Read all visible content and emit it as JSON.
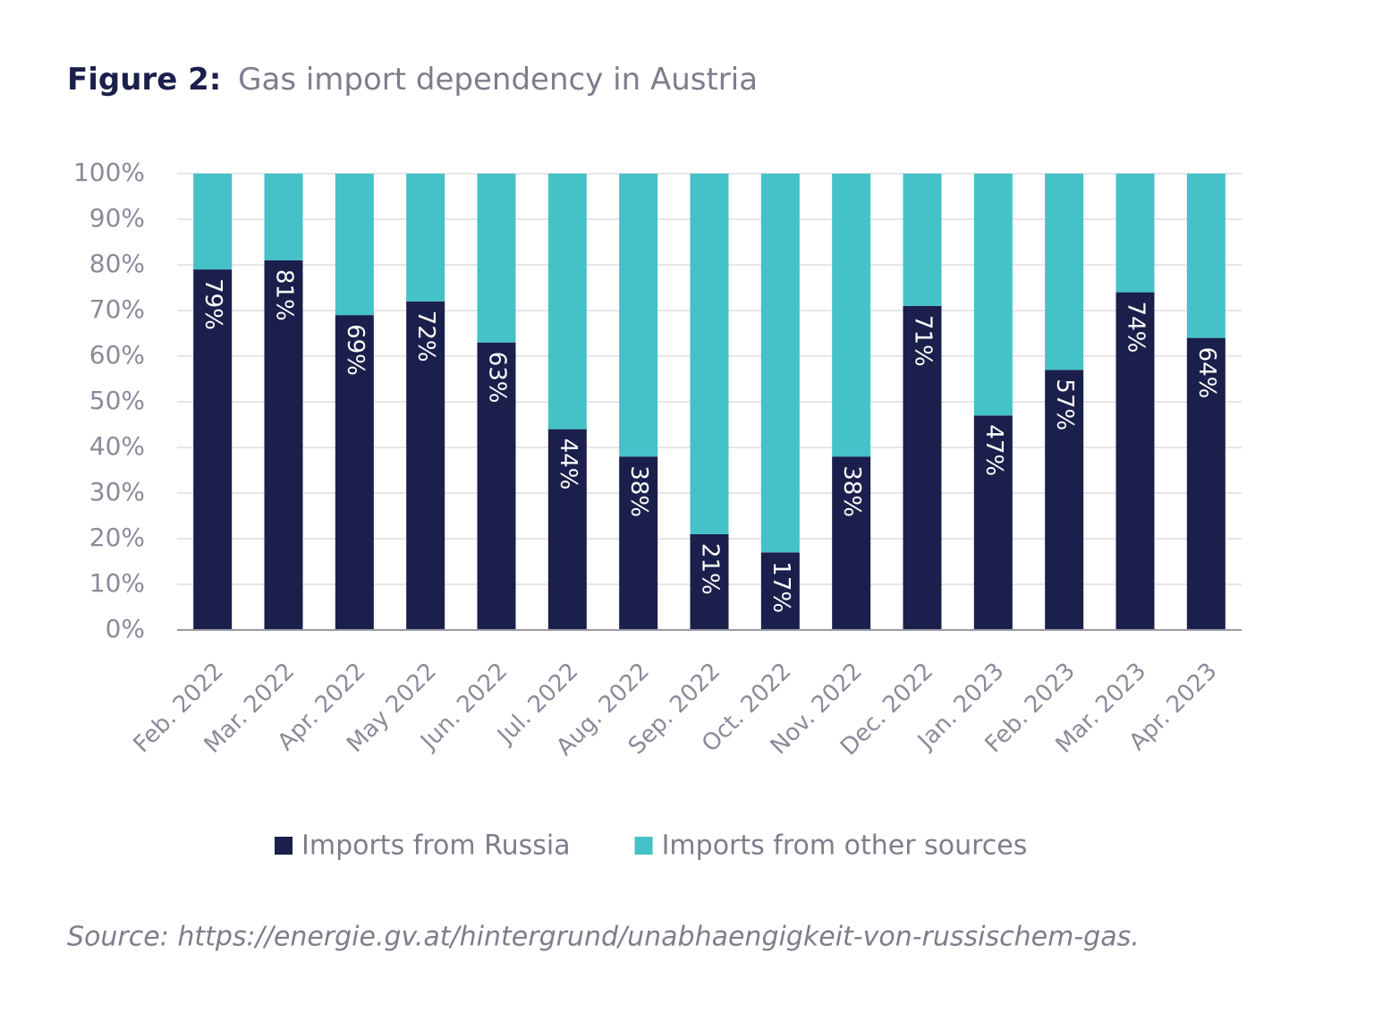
{
  "chart_data": {
    "type": "stacked_bar",
    "title_label": "Figure 2:",
    "title": "Gas import dependency in Austria",
    "source": "Source: https://energie.gv.at/hintergrund/unabhaengigkeit-von-russischem-gas.",
    "categories": [
      "Feb. 2022",
      "Mar. 2022",
      "Apr. 2022",
      "May 2022",
      "Jun. 2022",
      "Jul. 2022",
      "Aug. 2022",
      "Sep. 2022",
      "Oct. 2022",
      "Nov. 2022",
      "Dec. 2022",
      "Jan. 2023",
      "Feb. 2023",
      "Mar. 2023",
      "Apr. 2023"
    ],
    "series": [
      {
        "name": "Imports from Russia",
        "color": "#1b1f4b",
        "values": [
          79,
          81,
          69,
          72,
          63,
          44,
          38,
          21,
          17,
          38,
          71,
          47,
          57,
          74,
          64
        ],
        "value_labels": [
          "79%",
          "81%",
          "69%",
          "72%",
          "63%",
          "44%",
          "38%",
          "21%",
          "17%",
          "38%",
          "71%",
          "47%",
          "57%",
          "74%",
          "64%"
        ]
      },
      {
        "name": "Imports from other sources",
        "color": "#45c1c8",
        "values": [
          21,
          19,
          31,
          28,
          37,
          56,
          62,
          79,
          83,
          62,
          29,
          53,
          43,
          26,
          36
        ]
      }
    ],
    "ylim": [
      0,
      100
    ],
    "yticks": [
      {
        "value": 0,
        "label": "0%"
      },
      {
        "value": 10,
        "label": "10%"
      },
      {
        "value": 20,
        "label": "20%"
      },
      {
        "value": 30,
        "label": "30%"
      },
      {
        "value": 40,
        "label": "40%"
      },
      {
        "value": 50,
        "label": "50%"
      },
      {
        "value": 60,
        "label": "60%"
      },
      {
        "value": 70,
        "label": "70%"
      },
      {
        "value": 80,
        "label": "80%"
      },
      {
        "value": 90,
        "label": "90%"
      },
      {
        "value": 100,
        "label": "100%"
      }
    ],
    "grid": true,
    "legend": "bottom"
  }
}
